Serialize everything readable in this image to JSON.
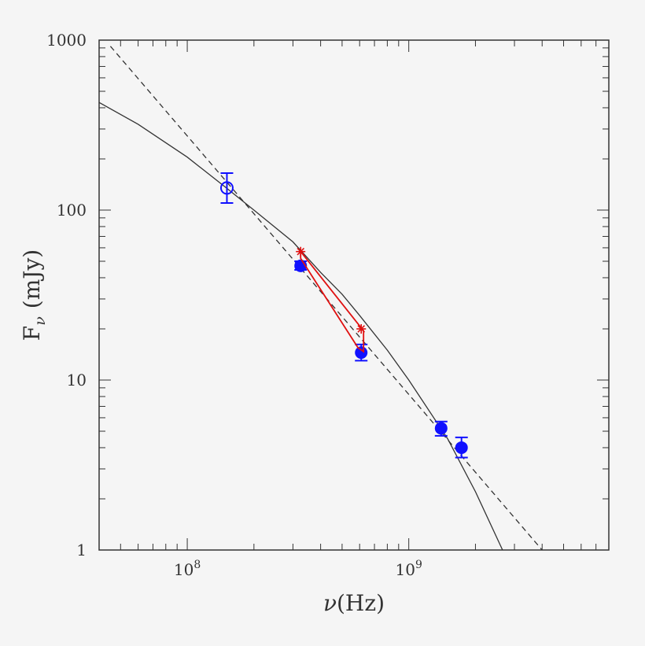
{
  "chart_data": {
    "type": "scatter",
    "xlabel_prefix": "ν",
    "xlabel_unit": "(Hz)",
    "ylabel_main": "F",
    "ylabel_sub": "ν",
    "ylabel_unit": "(mJy)",
    "xscale": "log",
    "yscale": "log",
    "xlim": [
      40000000,
      8000000000
    ],
    "ylim": [
      1,
      1000
    ],
    "x_major_ticks": [
      {
        "value": 100000000,
        "mantissa": "10",
        "exponent": "8"
      },
      {
        "value": 1000000000,
        "mantissa": "10",
        "exponent": "9"
      }
    ],
    "y_major_ticks": [
      {
        "value": 1,
        "label": "1"
      },
      {
        "value": 10,
        "label": "10"
      },
      {
        "value": 100,
        "label": "100"
      },
      {
        "value": 1000,
        "label": "1000"
      }
    ],
    "grid": false,
    "series": [
      {
        "kind": "points-open",
        "color": "#1010ff",
        "points": [
          {
            "x": 151000000,
            "y": 135,
            "ylo": 110,
            "yhi": 165
          }
        ]
      },
      {
        "kind": "points-filled",
        "color": "#1010ff",
        "points": [
          {
            "x": 325000000,
            "y": 47,
            "ylo": 44.5,
            "yhi": 50
          },
          {
            "x": 610000000,
            "y": 14.5,
            "ylo": 13,
            "yhi": 16.2
          },
          {
            "x": 1400000000,
            "y": 5.2,
            "ylo": 4.7,
            "yhi": 5.7
          },
          {
            "x": 1730000000,
            "y": 4.0,
            "ylo": 3.5,
            "yhi": 4.6
          }
        ]
      },
      {
        "kind": "red-asterisks",
        "color": "#e01010",
        "points": [
          {
            "x": 325000000,
            "y": 57
          },
          {
            "x": 610000000,
            "y": 20
          }
        ]
      },
      {
        "kind": "red-polygon",
        "color": "#e01010",
        "points": [
          {
            "x": 325000000,
            "y": 57
          },
          {
            "x": 625000000,
            "y": 19.5
          },
          {
            "x": 625000000,
            "y": 14.7
          },
          {
            "x": 590000000,
            "y": 15.5
          },
          {
            "x": 325000000,
            "y": 52
          }
        ]
      },
      {
        "kind": "solid-line",
        "color": "#333333",
        "points": [
          {
            "x": 40000000,
            "y": 430
          },
          {
            "x": 60000000,
            "y": 320
          },
          {
            "x": 100000000,
            "y": 205
          },
          {
            "x": 150000000,
            "y": 135
          },
          {
            "x": 200000000,
            "y": 100
          },
          {
            "x": 300000000,
            "y": 65
          },
          {
            "x": 400000000,
            "y": 43
          },
          {
            "x": 500000000,
            "y": 32
          },
          {
            "x": 600000000,
            "y": 24
          },
          {
            "x": 800000000,
            "y": 15
          },
          {
            "x": 1000000000,
            "y": 10
          },
          {
            "x": 1500000000,
            "y": 4.5
          },
          {
            "x": 2000000000,
            "y": 2.2
          },
          {
            "x": 2650000000,
            "y": 1
          }
        ]
      },
      {
        "kind": "dashed-line",
        "color": "#333333",
        "points": [
          {
            "x": 45000000,
            "y": 920
          },
          {
            "x": 4000000000,
            "y": 1
          }
        ]
      }
    ]
  }
}
